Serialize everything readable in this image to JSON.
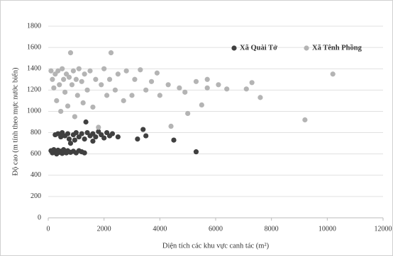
{
  "chart_data": {
    "type": "scatter",
    "x_label": "Diện tích các khu vực canh tác (m²)",
    "y_label": "Độ cao (m tính theo mực nước biển)",
    "xlim": [
      0,
      12000
    ],
    "xticks": [
      0,
      2000,
      4000,
      6000,
      8000,
      10000,
      12000
    ],
    "ylim": [
      0,
      1800
    ],
    "yticks": [
      0,
      200,
      400,
      600,
      800,
      1000,
      1200,
      1400,
      1600,
      1800
    ],
    "grid": true,
    "legend": "top-right",
    "series": [
      {
        "name": "Xã Quài Tở",
        "color": "#404040",
        "x": [
          100,
          150,
          200,
          250,
          300,
          350,
          400,
          450,
          500,
          550,
          600,
          650,
          700,
          800,
          900,
          1000,
          1100,
          1200,
          1300,
          250,
          350,
          450,
          500,
          600,
          700,
          750,
          800,
          900,
          950,
          1000,
          1100,
          1200,
          1300,
          1400,
          1500,
          1600,
          1700,
          1800,
          1900,
          2000,
          2100,
          2200,
          2300,
          2500,
          1350,
          1600,
          3200,
          3400,
          3500,
          4500,
          5300
        ],
        "values": [
          630,
          610,
          640,
          620,
          600,
          635,
          615,
          625,
          605,
          640,
          620,
          610,
          630,
          615,
          625,
          610,
          630,
          620,
          610,
          780,
          790,
          760,
          800,
          770,
          790,
          740,
          700,
          780,
          730,
          800,
          760,
          790,
          740,
          800,
          770,
          790,
          760,
          810,
          780,
          750,
          800,
          770,
          790,
          760,
          900,
          720,
          740,
          830,
          770,
          730,
          620
        ]
      },
      {
        "name": "Xã Tênh Phồng",
        "color": "#b4b4b4",
        "x": [
          100,
          150,
          200,
          250,
          300,
          350,
          400,
          450,
          500,
          550,
          600,
          650,
          700,
          750,
          800,
          850,
          900,
          950,
          1000,
          1050,
          1100,
          1200,
          1250,
          1300,
          1400,
          1500,
          1600,
          1700,
          1800,
          1900,
          2000,
          2100,
          2200,
          2250,
          2400,
          2500,
          2700,
          2800,
          3000,
          3100,
          3300,
          3500,
          3700,
          3900,
          4000,
          4300,
          4400,
          4700,
          4900,
          5000,
          5300,
          5500,
          5700,
          5700,
          6100,
          6400,
          7100,
          7300,
          7600,
          9200,
          10200
        ],
        "values": [
          1380,
          1300,
          1220,
          1350,
          1100,
          1380,
          1250,
          1000,
          1400,
          1300,
          1180,
          1350,
          1050,
          1320,
          1550,
          1250,
          1380,
          950,
          1300,
          1150,
          1400,
          1280,
          1080,
          1350,
          1200,
          1380,
          1040,
          1300,
          850,
          1250,
          1400,
          1150,
          1300,
          1550,
          1200,
          1350,
          1100,
          1380,
          1150,
          1300,
          1390,
          1200,
          1280,
          1360,
          1150,
          1250,
          860,
          1220,
          1180,
          980,
          1280,
          1060,
          1300,
          1220,
          1250,
          1210,
          1210,
          1270,
          1130,
          920,
          1350
        ]
      }
    ]
  }
}
